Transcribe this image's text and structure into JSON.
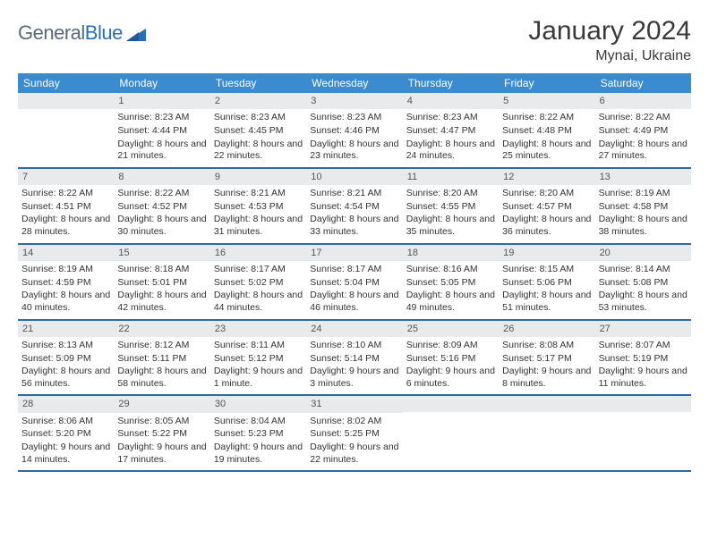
{
  "logo": {
    "word1": "General",
    "word2": "Blue"
  },
  "title": {
    "month": "January 2024",
    "location": "Mynai, Ukraine"
  },
  "colors": {
    "header_bg": "#3a8bd0",
    "header_text": "#ffffff",
    "row_divider": "#2f6aa8",
    "daynum_bg": "#e8eaec",
    "body_text": "#333333",
    "logo_gray": "#5a6a78",
    "logo_blue": "#2a6fb5"
  },
  "days_of_week": [
    "Sunday",
    "Monday",
    "Tuesday",
    "Wednesday",
    "Thursday",
    "Friday",
    "Saturday"
  ],
  "weeks": [
    [
      {
        "n": "",
        "sr": "",
        "ss": "",
        "dl": ""
      },
      {
        "n": "1",
        "sr": "Sunrise: 8:23 AM",
        "ss": "Sunset: 4:44 PM",
        "dl": "Daylight: 8 hours and 21 minutes."
      },
      {
        "n": "2",
        "sr": "Sunrise: 8:23 AM",
        "ss": "Sunset: 4:45 PM",
        "dl": "Daylight: 8 hours and 22 minutes."
      },
      {
        "n": "3",
        "sr": "Sunrise: 8:23 AM",
        "ss": "Sunset: 4:46 PM",
        "dl": "Daylight: 8 hours and 23 minutes."
      },
      {
        "n": "4",
        "sr": "Sunrise: 8:23 AM",
        "ss": "Sunset: 4:47 PM",
        "dl": "Daylight: 8 hours and 24 minutes."
      },
      {
        "n": "5",
        "sr": "Sunrise: 8:22 AM",
        "ss": "Sunset: 4:48 PM",
        "dl": "Daylight: 8 hours and 25 minutes."
      },
      {
        "n": "6",
        "sr": "Sunrise: 8:22 AM",
        "ss": "Sunset: 4:49 PM",
        "dl": "Daylight: 8 hours and 27 minutes."
      }
    ],
    [
      {
        "n": "7",
        "sr": "Sunrise: 8:22 AM",
        "ss": "Sunset: 4:51 PM",
        "dl": "Daylight: 8 hours and 28 minutes."
      },
      {
        "n": "8",
        "sr": "Sunrise: 8:22 AM",
        "ss": "Sunset: 4:52 PM",
        "dl": "Daylight: 8 hours and 30 minutes."
      },
      {
        "n": "9",
        "sr": "Sunrise: 8:21 AM",
        "ss": "Sunset: 4:53 PM",
        "dl": "Daylight: 8 hours and 31 minutes."
      },
      {
        "n": "10",
        "sr": "Sunrise: 8:21 AM",
        "ss": "Sunset: 4:54 PM",
        "dl": "Daylight: 8 hours and 33 minutes."
      },
      {
        "n": "11",
        "sr": "Sunrise: 8:20 AM",
        "ss": "Sunset: 4:55 PM",
        "dl": "Daylight: 8 hours and 35 minutes."
      },
      {
        "n": "12",
        "sr": "Sunrise: 8:20 AM",
        "ss": "Sunset: 4:57 PM",
        "dl": "Daylight: 8 hours and 36 minutes."
      },
      {
        "n": "13",
        "sr": "Sunrise: 8:19 AM",
        "ss": "Sunset: 4:58 PM",
        "dl": "Daylight: 8 hours and 38 minutes."
      }
    ],
    [
      {
        "n": "14",
        "sr": "Sunrise: 8:19 AM",
        "ss": "Sunset: 4:59 PM",
        "dl": "Daylight: 8 hours and 40 minutes."
      },
      {
        "n": "15",
        "sr": "Sunrise: 8:18 AM",
        "ss": "Sunset: 5:01 PM",
        "dl": "Daylight: 8 hours and 42 minutes."
      },
      {
        "n": "16",
        "sr": "Sunrise: 8:17 AM",
        "ss": "Sunset: 5:02 PM",
        "dl": "Daylight: 8 hours and 44 minutes."
      },
      {
        "n": "17",
        "sr": "Sunrise: 8:17 AM",
        "ss": "Sunset: 5:04 PM",
        "dl": "Daylight: 8 hours and 46 minutes."
      },
      {
        "n": "18",
        "sr": "Sunrise: 8:16 AM",
        "ss": "Sunset: 5:05 PM",
        "dl": "Daylight: 8 hours and 49 minutes."
      },
      {
        "n": "19",
        "sr": "Sunrise: 8:15 AM",
        "ss": "Sunset: 5:06 PM",
        "dl": "Daylight: 8 hours and 51 minutes."
      },
      {
        "n": "20",
        "sr": "Sunrise: 8:14 AM",
        "ss": "Sunset: 5:08 PM",
        "dl": "Daylight: 8 hours and 53 minutes."
      }
    ],
    [
      {
        "n": "21",
        "sr": "Sunrise: 8:13 AM",
        "ss": "Sunset: 5:09 PM",
        "dl": "Daylight: 8 hours and 56 minutes."
      },
      {
        "n": "22",
        "sr": "Sunrise: 8:12 AM",
        "ss": "Sunset: 5:11 PM",
        "dl": "Daylight: 8 hours and 58 minutes."
      },
      {
        "n": "23",
        "sr": "Sunrise: 8:11 AM",
        "ss": "Sunset: 5:12 PM",
        "dl": "Daylight: 9 hours and 1 minute."
      },
      {
        "n": "24",
        "sr": "Sunrise: 8:10 AM",
        "ss": "Sunset: 5:14 PM",
        "dl": "Daylight: 9 hours and 3 minutes."
      },
      {
        "n": "25",
        "sr": "Sunrise: 8:09 AM",
        "ss": "Sunset: 5:16 PM",
        "dl": "Daylight: 9 hours and 6 minutes."
      },
      {
        "n": "26",
        "sr": "Sunrise: 8:08 AM",
        "ss": "Sunset: 5:17 PM",
        "dl": "Daylight: 9 hours and 8 minutes."
      },
      {
        "n": "27",
        "sr": "Sunrise: 8:07 AM",
        "ss": "Sunset: 5:19 PM",
        "dl": "Daylight: 9 hours and 11 minutes."
      }
    ],
    [
      {
        "n": "28",
        "sr": "Sunrise: 8:06 AM",
        "ss": "Sunset: 5:20 PM",
        "dl": "Daylight: 9 hours and 14 minutes."
      },
      {
        "n": "29",
        "sr": "Sunrise: 8:05 AM",
        "ss": "Sunset: 5:22 PM",
        "dl": "Daylight: 9 hours and 17 minutes."
      },
      {
        "n": "30",
        "sr": "Sunrise: 8:04 AM",
        "ss": "Sunset: 5:23 PM",
        "dl": "Daylight: 9 hours and 19 minutes."
      },
      {
        "n": "31",
        "sr": "Sunrise: 8:02 AM",
        "ss": "Sunset: 5:25 PM",
        "dl": "Daylight: 9 hours and 22 minutes."
      },
      {
        "n": "",
        "sr": "",
        "ss": "",
        "dl": ""
      },
      {
        "n": "",
        "sr": "",
        "ss": "",
        "dl": ""
      },
      {
        "n": "",
        "sr": "",
        "ss": "",
        "dl": ""
      }
    ]
  ]
}
